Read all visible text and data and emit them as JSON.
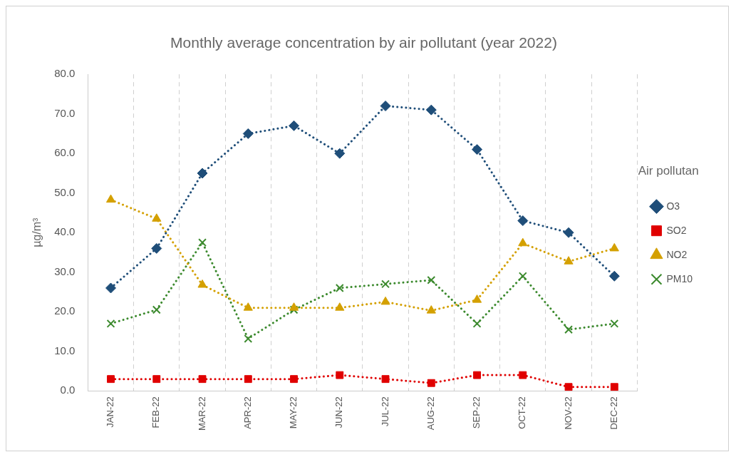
{
  "chart_data": {
    "type": "line",
    "title": "Monthly average concentration by air pollutant (year 2022)",
    "ylabel": "µg/m³",
    "legend_title": "Air pollutan",
    "categories": [
      "JAN-22",
      "FEB-22",
      "MAR-22",
      "APR-22",
      "MAY-22",
      "JUN-22",
      "JUL-22",
      "AUG-22",
      "SEP-22",
      "OCT-22",
      "NOV-22",
      "DEC-22"
    ],
    "series": [
      {
        "name": "O3",
        "color": "#1f4e79",
        "marker": "diamond",
        "values": [
          26,
          36,
          55,
          65,
          67,
          60,
          72,
          71,
          61,
          43,
          40,
          29
        ]
      },
      {
        "name": "SO2",
        "color": "#e00000",
        "marker": "square",
        "values": [
          3,
          3,
          3,
          3,
          3,
          4,
          3,
          2,
          4,
          4,
          1,
          1
        ]
      },
      {
        "name": "NO2",
        "color": "#d4a000",
        "marker": "triangle",
        "values": [
          48.3,
          43.5,
          26.8,
          21,
          21,
          21,
          22.5,
          20.3,
          23,
          37.3,
          32.7,
          36
        ]
      },
      {
        "name": "PM10",
        "color": "#3c8a2e",
        "marker": "cross",
        "values": [
          17,
          20.5,
          37.5,
          13.2,
          20.5,
          26,
          27,
          28,
          17,
          29,
          15.5,
          17
        ]
      }
    ],
    "ylim": [
      0,
      80
    ],
    "yticks": [
      {
        "value": 0,
        "label": "0.0"
      },
      {
        "value": 10,
        "label": "10.0"
      },
      {
        "value": 20,
        "label": "20.0"
      },
      {
        "value": 30,
        "label": "30.0"
      },
      {
        "value": 40,
        "label": "40.0"
      },
      {
        "value": 50,
        "label": "50.0"
      },
      {
        "value": 60,
        "label": "60.0"
      },
      {
        "value": 70,
        "label": "70.0"
      },
      {
        "value": 80,
        "label": "80.0"
      }
    ],
    "grid": "x",
    "legend": "right",
    "line_style": "dotted"
  }
}
